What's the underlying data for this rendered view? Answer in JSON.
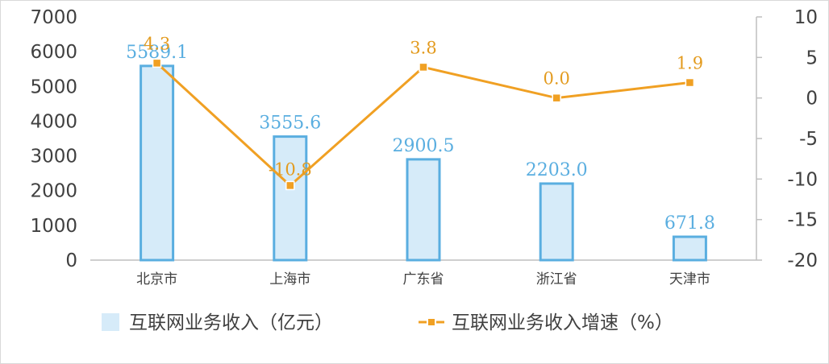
{
  "colors": {
    "bar_fill": "#d6ebf9",
    "bar_stroke": "#5aaee0",
    "line": "#f0a023",
    "label_bar": "#5aaee0",
    "label_line": "#e39b1f",
    "axis": "#bfbfbf"
  },
  "chart_data": {
    "type": "bar",
    "categories": [
      "北京市",
      "上海市",
      "广东省",
      "浙江省",
      "天津市"
    ],
    "series": [
      {
        "name": "互联网业务收入（亿元）",
        "type": "bar",
        "axis": "left",
        "values": [
          5589.1,
          3555.6,
          2900.5,
          2203.0,
          671.8
        ],
        "labels": [
          "5589.1",
          "3555.6",
          "2900.5",
          "2203.0",
          "671.8"
        ]
      },
      {
        "name": "互联网业务收入增速（%）",
        "type": "line",
        "axis": "right",
        "values": [
          4.3,
          -10.8,
          3.8,
          0.0,
          1.9
        ],
        "labels": [
          "4.3",
          "-10.8",
          "3.8",
          "0.0",
          "1.9"
        ]
      }
    ],
    "y_left": {
      "min": 0,
      "max": 7000,
      "step": 1000,
      "ticks": [
        "0",
        "1000",
        "2000",
        "3000",
        "4000",
        "5000",
        "6000",
        "7000"
      ]
    },
    "y_right": {
      "min": -20,
      "max": 10,
      "step": 5,
      "ticks": [
        "-20",
        "-15",
        "-10",
        "-5",
        "0",
        "5",
        "10"
      ]
    },
    "legend": {
      "position": "bottom",
      "items": [
        "互联网业务收入（亿元）",
        "互联网业务收入增速（%）"
      ]
    },
    "grid": false
  }
}
